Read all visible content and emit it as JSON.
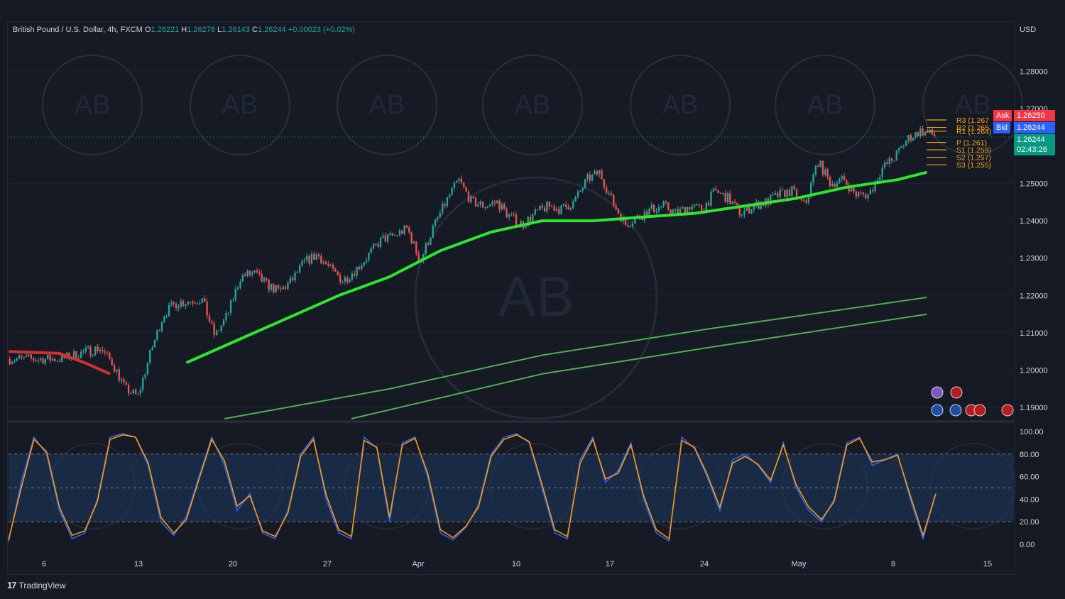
{
  "header": {
    "symbol": "British Pound / U.S. Dollar, 4h, FXCM",
    "o_label": "O",
    "o_value": "1.26221",
    "h_label": "H",
    "h_value": "1.26276",
    "l_label": "L",
    "l_value": "1.26143",
    "c_label": "C",
    "c_value": "1.26244",
    "change": "+0.00023 (+0.02%)"
  },
  "currency": "USD",
  "price_tags": {
    "ask_label": "Ask",
    "ask_value": "1.26250",
    "bid_label": "Bid",
    "bid_value": "1.26244",
    "last_value": "1.26244",
    "countdown": "02:43:26"
  },
  "pivots": [
    {
      "label": "R3 (1.267",
      "value": 1.267
    },
    {
      "label": "R2 (1.265",
      "value": 1.265
    },
    {
      "label": "R1 (1.264)",
      "value": 1.264
    },
    {
      "label": "P (1.261)",
      "value": 1.261
    },
    {
      "label": "S1 (1.259)",
      "value": 1.259
    },
    {
      "label": "S2 (1.257)",
      "value": 1.257
    },
    {
      "label": "S3 (1.255)",
      "value": 1.255
    }
  ],
  "branding": {
    "logo_text": "TradingView",
    "watermark": "AB"
  },
  "colors": {
    "up": "#26a69a",
    "down": "#ef5350",
    "ema_bright": "#2ee52e",
    "ema_dark": "#4caf50",
    "ema_red": "#d32f2f",
    "stoch_k": "#2962ff",
    "stoch_d": "#ff9800",
    "ask": "#f23645",
    "bid": "#2962ff",
    "pivot": "#f7a21b"
  },
  "chart_data": [
    {
      "type": "candlestick",
      "title": "",
      "ylim": [
        1.187,
        1.29
      ],
      "y_ticks": [
        "1.28000",
        "1.27000",
        "1.26000",
        "1.25000",
        "1.24000",
        "1.23000",
        "1.22000",
        "1.21000",
        "1.20000",
        "1.19000"
      ],
      "x_ticks": [
        "6",
        "13",
        "20",
        "27",
        "Apr",
        "10",
        "17",
        "24",
        "May",
        "8",
        "15"
      ],
      "close_path": [
        [
          4,
          1.203
        ],
        [
          7,
          1.206
        ],
        [
          8,
          1.202
        ],
        [
          9,
          1.195
        ],
        [
          10,
          1.193
        ],
        [
          11,
          1.205
        ],
        [
          12,
          1.215
        ],
        [
          13,
          1.218
        ],
        [
          15,
          1.219
        ],
        [
          16,
          1.209
        ],
        [
          17,
          1.215
        ],
        [
          18,
          1.225
        ],
        [
          19,
          1.226
        ],
        [
          20,
          1.223
        ],
        [
          21,
          1.221
        ],
        [
          22,
          1.224
        ],
        [
          23,
          1.229
        ],
        [
          24,
          1.231
        ],
        [
          25,
          1.227
        ],
        [
          26,
          1.224
        ],
        [
          27,
          1.227
        ],
        [
          28,
          1.231
        ],
        [
          29,
          1.235
        ],
        [
          30,
          1.236
        ],
        [
          31,
          1.238
        ],
        [
          32,
          1.229
        ],
        [
          33,
          1.238
        ],
        [
          34,
          1.245
        ],
        [
          35,
          1.251
        ],
        [
          36,
          1.245
        ],
        [
          37,
          1.244
        ],
        [
          38,
          1.245
        ],
        [
          39,
          1.241
        ],
        [
          40,
          1.239
        ],
        [
          41,
          1.242
        ],
        [
          42,
          1.244
        ],
        [
          43,
          1.243
        ],
        [
          44,
          1.245
        ],
        [
          45,
          1.251
        ],
        [
          46,
          1.253
        ],
        [
          47,
          1.245
        ],
        [
          48,
          1.239
        ],
        [
          49,
          1.241
        ],
        [
          50,
          1.243
        ],
        [
          51,
          1.244
        ],
        [
          52,
          1.242
        ],
        [
          53,
          1.244
        ],
        [
          54,
          1.243
        ],
        [
          55,
          1.248
        ],
        [
          56,
          1.246
        ],
        [
          57,
          1.242
        ],
        [
          58,
          1.244
        ],
        [
          59,
          1.245
        ],
        [
          60,
          1.247
        ],
        [
          61,
          1.248
        ],
        [
          62,
          1.244
        ],
        [
          63,
          1.256
        ],
        [
          64,
          1.25
        ],
        [
          65,
          1.251
        ],
        [
          66,
          1.247
        ],
        [
          67,
          1.247
        ],
        [
          68,
          1.254
        ],
        [
          69,
          1.257
        ],
        [
          70,
          1.262
        ],
        [
          71,
          1.264
        ],
        [
          72,
          1.263
        ],
        [
          72.3,
          1.2624
        ]
      ],
      "overlays": [
        {
          "name": "",
          "color": "#2ee52e",
          "points": [
            [
              14,
              1.202
            ],
            [
              18,
              1.208
            ],
            [
              22,
              1.214
            ],
            [
              26,
              1.22
            ],
            [
              30,
              1.225
            ],
            [
              34,
              1.232
            ],
            [
              38,
              1.237
            ],
            [
              42,
              1.24
            ],
            [
              46,
              1.24
            ],
            [
              50,
              1.241
            ],
            [
              54,
              1.242
            ],
            [
              58,
              1.244
            ],
            [
              62,
              1.246
            ],
            [
              66,
              1.249
            ],
            [
              70,
              1.251
            ],
            [
              72.3,
              1.253
            ]
          ]
        },
        {
          "name": "",
          "color": "#4caf50",
          "points": [
            [
              17,
              1.187
            ],
            [
              30,
              1.195
            ],
            [
              42,
              1.204
            ],
            [
              55,
              1.211
            ],
            [
              72.3,
              1.2195
            ]
          ]
        },
        {
          "name": "",
          "color": "#4caf50",
          "points": [
            [
              27,
              1.187
            ],
            [
              42,
              1.199
            ],
            [
              55,
              1.206
            ],
            [
              72.3,
              1.215
            ]
          ]
        },
        {
          "name": "",
          "color": "#d32f2f",
          "points": [
            [
              0,
              1.205
            ],
            [
              4,
              1.2045
            ],
            [
              6,
              1.202
            ],
            [
              8,
              1.199
            ]
          ]
        }
      ]
    },
    {
      "type": "line",
      "title": "",
      "ylim": [
        -5,
        105
      ],
      "y_ticks": [
        "100.00",
        "80.00",
        "60.00",
        "40.00",
        "20.00",
        "0.00"
      ],
      "bands": [
        20,
        50,
        80
      ],
      "series": [
        {
          "name": "",
          "color": "#2962ff",
          "values": [
            2,
            55,
            95,
            80,
            30,
            5,
            10,
            40,
            95,
            98,
            95,
            70,
            20,
            8,
            25,
            60,
            95,
            70,
            30,
            45,
            10,
            5,
            30,
            80,
            95,
            40,
            10,
            5,
            95,
            85,
            20,
            90,
            95,
            60,
            10,
            4,
            15,
            35,
            80,
            95,
            98,
            90,
            50,
            10,
            5,
            75,
            95,
            55,
            65,
            90,
            40,
            10,
            3,
            95,
            85,
            60,
            30,
            75,
            80,
            70,
            55,
            90,
            50,
            30,
            20,
            40,
            90,
            95,
            70,
            75,
            80,
            40,
            5,
            45
          ]
        },
        {
          "name": "",
          "color": "#ff9800",
          "values": [
            4,
            50,
            93,
            82,
            33,
            8,
            12,
            38,
            93,
            97,
            95,
            72,
            24,
            10,
            22,
            58,
            93,
            74,
            34,
            43,
            12,
            7,
            28,
            78,
            93,
            44,
            13,
            7,
            92,
            86,
            24,
            88,
            94,
            63,
            13,
            6,
            16,
            33,
            78,
            93,
            97,
            91,
            53,
            13,
            7,
            72,
            93,
            58,
            63,
            88,
            43,
            13,
            5,
            92,
            86,
            62,
            33,
            72,
            78,
            71,
            57,
            88,
            53,
            33,
            22,
            38,
            88,
            94,
            73,
            75,
            79,
            43,
            8,
            45
          ]
        }
      ]
    }
  ]
}
